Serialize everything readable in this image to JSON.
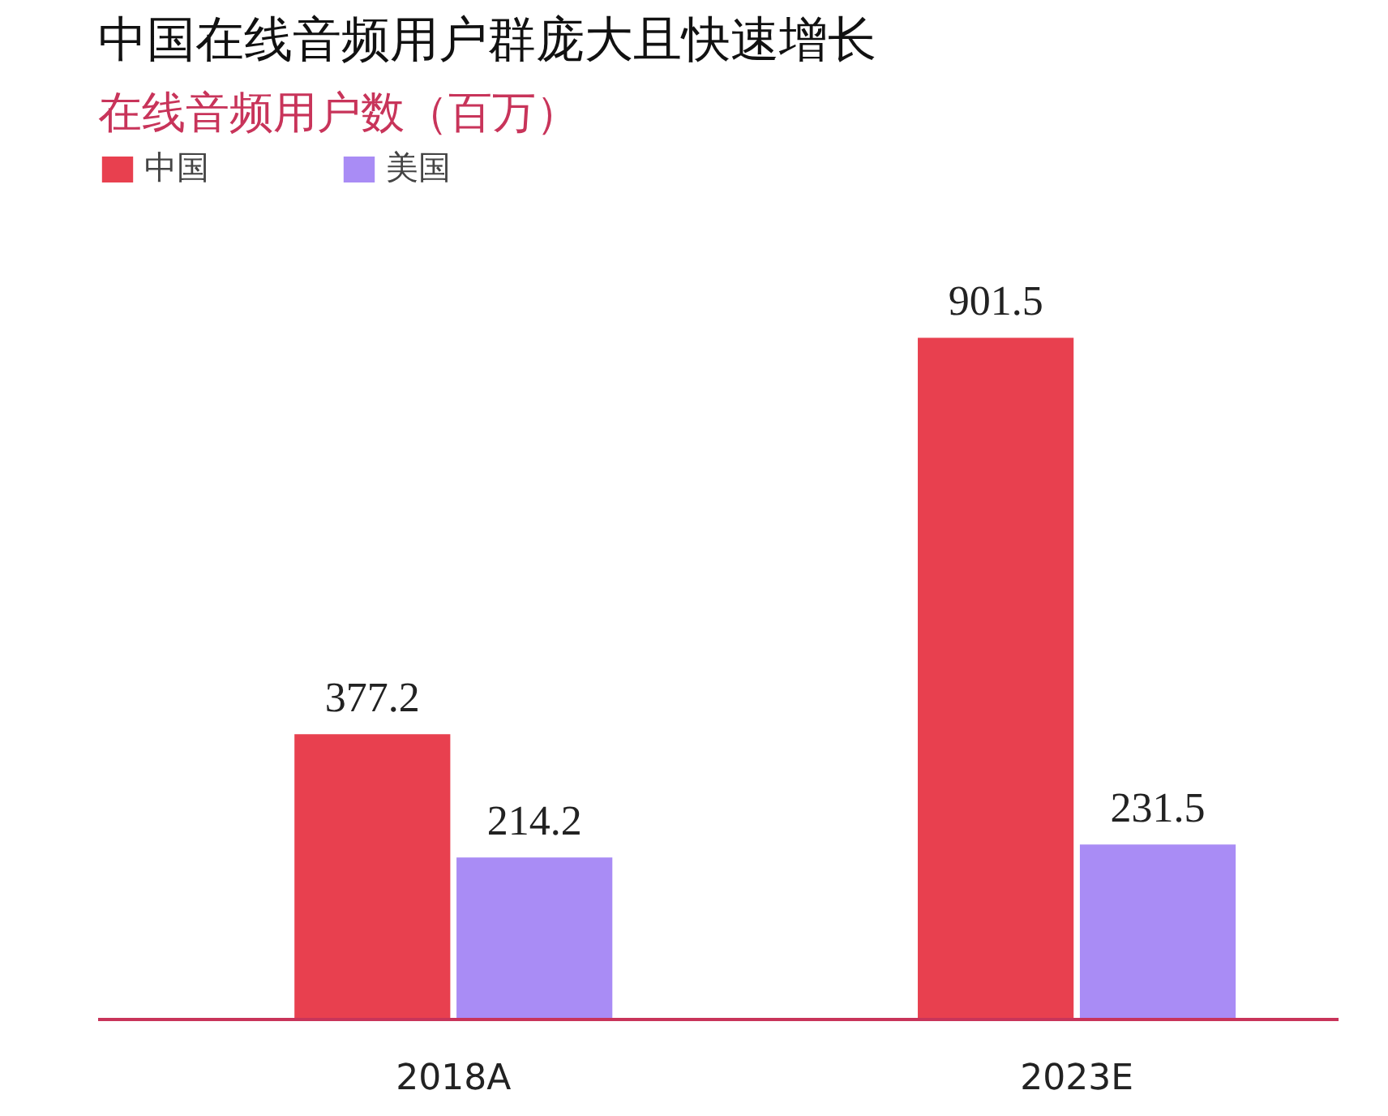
{
  "chart_data": {
    "type": "bar",
    "title": "中国在线音频用户群庞大且快速增长",
    "subtitle": "在线音频用户数（百万）",
    "categories": [
      "2018A",
      "2023E"
    ],
    "series": [
      {
        "name": "中国",
        "color": "#e8404f",
        "values": [
          377.2,
          901.5
        ]
      },
      {
        "name": "美国",
        "color": "#a98cf5",
        "values": [
          214.2,
          231.5
        ]
      }
    ],
    "data_labels": true,
    "legend": "top left",
    "grid": false,
    "tick_labels": "x"
  }
}
